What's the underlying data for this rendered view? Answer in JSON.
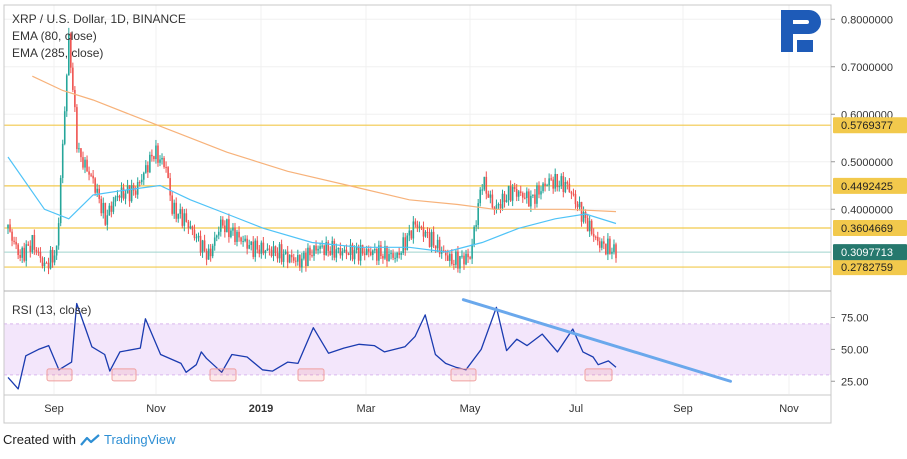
{
  "header": {
    "symbol_line": "XRP / U.S. Dollar, 1D, BINANCE",
    "ema_short": "EMA (80, close)",
    "ema_long": "EMA (285, close)",
    "rsi_label": "RSI (13, close)"
  },
  "footer": {
    "created_with": "Created with",
    "brand": "TradingView"
  },
  "colors": {
    "up": "#26a69a",
    "down": "#ef5350",
    "ema80": "#4fc3f7",
    "ema285": "#f7b27a",
    "level": "#f2c94c",
    "rsi_line": "#1a3bb0",
    "rsi_band": "#f3e6fb",
    "trend": "#6aa8ec",
    "current": "#26786d",
    "logo": "#1e5bb8"
  },
  "chart_data": {
    "type": "candlestick",
    "exchange": "BINANCE",
    "timeframe": "1D",
    "price_axis": {
      "ylim": [
        0.23,
        0.83
      ],
      "ticks": [
        {
          "value": 0.8,
          "label": "0.8000000"
        },
        {
          "value": 0.7,
          "label": "0.7000000"
        },
        {
          "value": 0.6,
          "label": "0.6000000"
        },
        {
          "value": 0.5,
          "label": "0.5000000"
        },
        {
          "value": 0.4,
          "label": "0.4000000"
        }
      ]
    },
    "levels": [
      {
        "value": 0.5769377,
        "label": "0.5769377"
      },
      {
        "value": 0.4492425,
        "label": "0.4492425"
      },
      {
        "value": 0.3604669,
        "label": "0.3604669"
      },
      {
        "value": 0.2782759,
        "label": "0.2782759"
      }
    ],
    "current_price": {
      "value": 0.3097713,
      "label": "0.3097713"
    },
    "time_axis": {
      "ticks": [
        "Sep",
        "Nov",
        "2019",
        "Mar",
        "May",
        "Jul",
        "Sep",
        "Nov"
      ]
    },
    "price_path": [
      [
        0,
        0.36
      ],
      [
        0.02,
        0.3
      ],
      [
        0.04,
        0.33
      ],
      [
        0.06,
        0.28
      ],
      [
        0.08,
        0.31
      ],
      [
        0.1,
        0.76
      ],
      [
        0.115,
        0.52
      ],
      [
        0.14,
        0.46
      ],
      [
        0.16,
        0.38
      ],
      [
        0.18,
        0.43
      ],
      [
        0.21,
        0.44
      ],
      [
        0.24,
        0.52
      ],
      [
        0.26,
        0.49
      ],
      [
        0.27,
        0.4
      ],
      [
        0.29,
        0.38
      ],
      [
        0.31,
        0.34
      ],
      [
        0.33,
        0.3
      ],
      [
        0.35,
        0.37
      ],
      [
        0.37,
        0.35
      ],
      [
        0.4,
        0.32
      ],
      [
        0.44,
        0.31
      ],
      [
        0.48,
        0.29
      ],
      [
        0.51,
        0.32
      ],
      [
        0.55,
        0.31
      ],
      [
        0.6,
        0.31
      ],
      [
        0.64,
        0.3
      ],
      [
        0.67,
        0.37
      ],
      [
        0.7,
        0.33
      ],
      [
        0.73,
        0.29
      ],
      [
        0.76,
        0.3
      ],
      [
        0.78,
        0.46
      ],
      [
        0.8,
        0.4
      ],
      [
        0.83,
        0.44
      ],
      [
        0.86,
        0.42
      ],
      [
        0.89,
        0.46
      ],
      [
        0.92,
        0.45
      ],
      [
        0.94,
        0.4
      ],
      [
        0.97,
        0.33
      ],
      [
        1.0,
        0.31
      ]
    ],
    "ema80_path": [
      [
        0,
        0.51
      ],
      [
        0.06,
        0.4
      ],
      [
        0.1,
        0.38
      ],
      [
        0.14,
        0.43
      ],
      [
        0.19,
        0.44
      ],
      [
        0.25,
        0.45
      ],
      [
        0.3,
        0.42
      ],
      [
        0.36,
        0.39
      ],
      [
        0.42,
        0.36
      ],
      [
        0.5,
        0.33
      ],
      [
        0.58,
        0.32
      ],
      [
        0.66,
        0.32
      ],
      [
        0.72,
        0.31
      ],
      [
        0.78,
        0.33
      ],
      [
        0.84,
        0.36
      ],
      [
        0.9,
        0.38
      ],
      [
        0.95,
        0.39
      ],
      [
        1.0,
        0.37
      ]
    ],
    "ema285_path": [
      [
        0.04,
        0.68
      ],
      [
        0.09,
        0.65
      ],
      [
        0.14,
        0.63
      ],
      [
        0.2,
        0.6
      ],
      [
        0.28,
        0.56
      ],
      [
        0.36,
        0.52
      ],
      [
        0.46,
        0.48
      ],
      [
        0.56,
        0.45
      ],
      [
        0.66,
        0.42
      ],
      [
        0.74,
        0.41
      ],
      [
        0.8,
        0.4
      ],
      [
        0.86,
        0.4
      ],
      [
        0.92,
        0.4
      ],
      [
        1.0,
        0.395
      ]
    ],
    "rsi": {
      "ylim": [
        15,
        95
      ],
      "ticks": [
        {
          "value": 75,
          "label": "75.00"
        },
        {
          "value": 50,
          "label": "50.00"
        },
        {
          "value": 25,
          "label": "25.00"
        }
      ],
      "band": [
        30,
        70
      ],
      "path": [
        [
          0,
          28
        ],
        [
          0.02,
          19
        ],
        [
          0.035,
          45
        ],
        [
          0.06,
          50
        ],
        [
          0.08,
          53
        ],
        [
          0.1,
          34
        ],
        [
          0.125,
          40
        ],
        [
          0.135,
          86
        ],
        [
          0.15,
          69
        ],
        [
          0.165,
          52
        ],
        [
          0.19,
          46
        ],
        [
          0.2,
          33
        ],
        [
          0.22,
          48
        ],
        [
          0.26,
          51
        ],
        [
          0.27,
          74
        ],
        [
          0.3,
          46
        ],
        [
          0.34,
          39
        ],
        [
          0.35,
          32
        ],
        [
          0.37,
          38
        ],
        [
          0.38,
          48
        ],
        [
          0.39,
          43
        ],
        [
          0.42,
          32
        ],
        [
          0.44,
          46
        ],
        [
          0.47,
          44
        ],
        [
          0.5,
          34
        ],
        [
          0.52,
          33
        ],
        [
          0.55,
          40
        ],
        [
          0.57,
          39
        ],
        [
          0.6,
          67
        ],
        [
          0.63,
          47
        ],
        [
          0.66,
          51
        ],
        [
          0.69,
          54
        ],
        [
          0.72,
          53
        ],
        [
          0.74,
          48
        ],
        [
          0.78,
          52
        ],
        [
          0.8,
          60
        ],
        [
          0.82,
          77
        ],
        [
          0.84,
          46
        ],
        [
          0.86,
          39
        ],
        [
          0.88,
          36
        ],
        [
          0.9,
          34
        ],
        [
          0.93,
          50
        ],
        [
          0.96,
          83
        ],
        [
          0.98,
          49
        ],
        [
          1.0,
          58
        ],
        [
          1.02,
          53
        ],
        [
          1.05,
          62
        ],
        [
          1.08,
          48
        ],
        [
          1.11,
          66
        ],
        [
          1.13,
          48
        ],
        [
          1.15,
          44
        ],
        [
          1.16,
          38
        ],
        [
          1.18,
          41
        ],
        [
          1.195,
          36
        ]
      ],
      "trendline": [
        [
          0.895,
          89
        ],
        [
          1.42,
          25
        ]
      ]
    }
  }
}
